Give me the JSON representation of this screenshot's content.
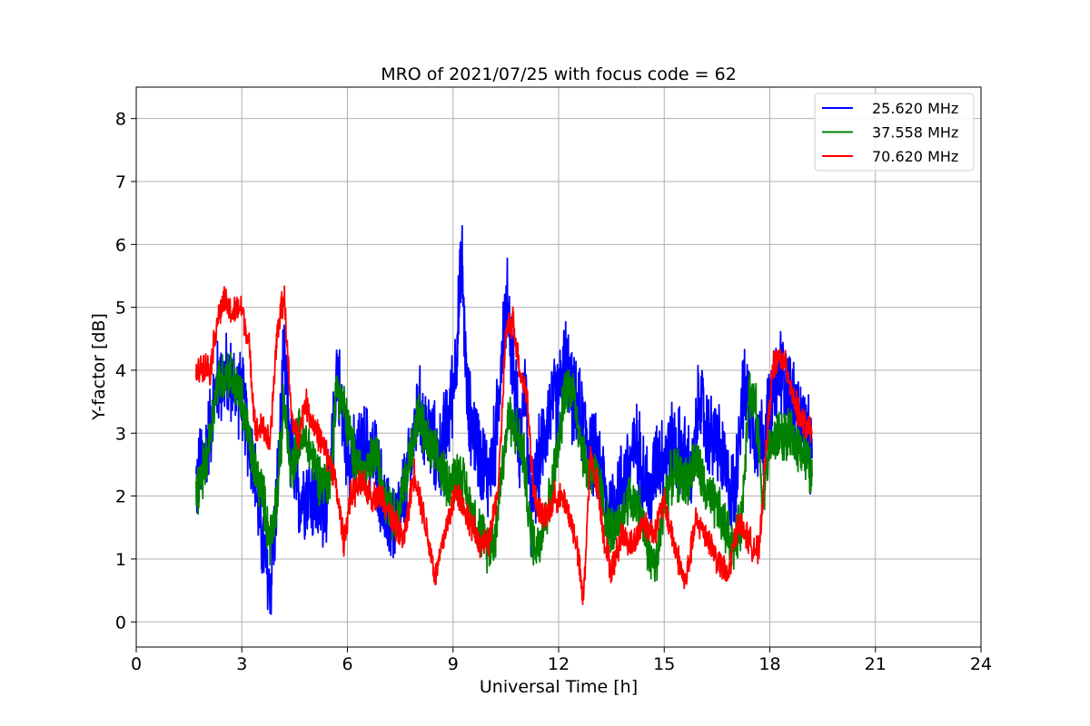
{
  "chart_data": {
    "type": "line",
    "title": "MRO of 2021/07/25 with focus code = 62",
    "xlabel": "Universal Time [h]",
    "ylabel": "Y-factor [dB]",
    "xlim": [
      0,
      24
    ],
    "ylim": [
      -0.4,
      8.5
    ],
    "xticks": [
      0,
      3,
      6,
      9,
      12,
      15,
      18,
      21,
      24
    ],
    "yticks": [
      0,
      1,
      2,
      3,
      4,
      5,
      6,
      7,
      8
    ],
    "grid": true,
    "legend_position": "top-right",
    "series": [
      {
        "name": "25.620 MHz",
        "color": "#0000ff",
        "noise": 0.6,
        "x": [
          1.7,
          2.0,
          2.3,
          2.6,
          3.0,
          3.3,
          3.6,
          3.8,
          4.0,
          4.2,
          4.4,
          4.6,
          4.9,
          5.2,
          5.5,
          5.7,
          5.9,
          6.2,
          6.5,
          6.8,
          7.1,
          7.4,
          7.7,
          8.0,
          8.3,
          8.6,
          8.9,
          9.1,
          9.25,
          9.4,
          9.6,
          9.8,
          10.0,
          10.2,
          10.4,
          10.55,
          10.7,
          10.9,
          11.05,
          11.2,
          11.4,
          11.7,
          12.0,
          12.2,
          12.4,
          12.6,
          12.8,
          13.0,
          13.2,
          13.4,
          13.6,
          13.8,
          14.0,
          14.2,
          14.4,
          14.6,
          14.8,
          15.0,
          15.2,
          15.5,
          15.8,
          16.0,
          16.2,
          16.5,
          16.8,
          17.0,
          17.2,
          17.4,
          17.6,
          17.8,
          18.0,
          18.3,
          18.6,
          18.9,
          19.2
        ],
        "values": [
          2.2,
          2.8,
          3.8,
          3.9,
          3.6,
          2.6,
          1.2,
          0.5,
          2.0,
          4.2,
          2.6,
          2.0,
          2.1,
          1.8,
          2.0,
          4.1,
          3.0,
          2.5,
          2.8,
          2.6,
          1.6,
          1.6,
          2.2,
          3.4,
          3.0,
          2.6,
          3.3,
          4.3,
          5.8,
          3.5,
          3.0,
          2.6,
          2.3,
          2.8,
          4.5,
          5.1,
          4.1,
          2.8,
          3.9,
          1.6,
          2.4,
          3.3,
          3.6,
          4.2,
          3.5,
          3.3,
          3.0,
          2.6,
          2.5,
          1.7,
          2.0,
          2.2,
          2.5,
          2.8,
          2.5,
          1.9,
          2.7,
          2.6,
          2.8,
          2.7,
          2.3,
          3.6,
          3.0,
          2.9,
          2.2,
          2.0,
          3.6,
          3.5,
          3.0,
          2.9,
          3.4,
          4.0,
          3.6,
          3.2,
          2.6
        ]
      },
      {
        "name": "37.558 MHz",
        "color": "#008000",
        "noise": 0.35,
        "x": [
          1.7,
          2.0,
          2.3,
          2.6,
          3.0,
          3.3,
          3.6,
          3.8,
          4.0,
          4.2,
          4.4,
          4.6,
          4.9,
          5.2,
          5.5,
          5.7,
          5.9,
          6.2,
          6.5,
          6.8,
          7.1,
          7.4,
          7.7,
          8.0,
          8.3,
          8.6,
          8.9,
          9.2,
          9.5,
          9.8,
          10.0,
          10.2,
          10.4,
          10.6,
          10.8,
          11.0,
          11.2,
          11.4,
          11.7,
          12.0,
          12.2,
          12.4,
          12.6,
          12.8,
          13.0,
          13.2,
          13.4,
          13.6,
          13.8,
          14.0,
          14.3,
          14.6,
          14.8,
          15.0,
          15.3,
          15.6,
          15.9,
          16.2,
          16.5,
          16.8,
          17.0,
          17.2,
          17.4,
          17.6,
          17.8,
          18.0,
          18.3,
          18.6,
          18.9,
          19.2
        ],
        "values": [
          2.0,
          2.6,
          3.8,
          4.0,
          3.5,
          2.6,
          2.0,
          1.3,
          2.0,
          3.5,
          2.3,
          3.0,
          2.8,
          2.3,
          2.2,
          3.8,
          3.4,
          2.6,
          2.3,
          2.7,
          2.0,
          1.6,
          2.4,
          3.3,
          2.8,
          2.5,
          2.2,
          2.4,
          1.8,
          1.4,
          1.2,
          1.4,
          2.5,
          3.3,
          3.0,
          2.7,
          1.4,
          1.2,
          1.8,
          2.8,
          3.8,
          3.7,
          3.0,
          2.4,
          2.4,
          2.1,
          1.5,
          1.4,
          1.6,
          2.0,
          1.8,
          1.0,
          0.9,
          2.0,
          2.4,
          2.2,
          2.6,
          2.0,
          1.8,
          1.4,
          1.2,
          1.6,
          3.7,
          3.4,
          2.0,
          2.8,
          3.0,
          2.9,
          2.8,
          2.3
        ]
      },
      {
        "name": "70.620 MHz",
        "color": "#ff0000",
        "noise": 0.2,
        "x": [
          1.7,
          1.9,
          2.1,
          2.3,
          2.5,
          2.7,
          3.0,
          3.2,
          3.4,
          3.6,
          3.8,
          4.0,
          4.2,
          4.4,
          4.6,
          4.8,
          5.0,
          5.3,
          5.6,
          5.9,
          6.1,
          6.4,
          6.7,
          7.0,
          7.3,
          7.6,
          7.9,
          8.2,
          8.5,
          8.8,
          9.1,
          9.4,
          9.7,
          10.0,
          10.3,
          10.5,
          10.7,
          10.9,
          11.1,
          11.3,
          11.6,
          11.9,
          12.2,
          12.5,
          12.7,
          12.9,
          13.1,
          13.3,
          13.5,
          13.8,
          14.1,
          14.4,
          14.7,
          15.0,
          15.3,
          15.6,
          15.9,
          16.2,
          16.5,
          16.8,
          17.1,
          17.4,
          17.7,
          17.9,
          18.1,
          18.3,
          18.5,
          18.7,
          18.9,
          19.2
        ],
        "values": [
          3.9,
          4.1,
          4.0,
          4.8,
          5.1,
          4.9,
          5.0,
          4.4,
          3.0,
          3.1,
          2.8,
          4.6,
          5.2,
          3.3,
          2.9,
          3.5,
          3.2,
          2.8,
          2.4,
          1.3,
          2.0,
          2.2,
          2.0,
          2.0,
          1.6,
          1.3,
          2.4,
          1.6,
          0.7,
          1.5,
          2.1,
          1.7,
          1.3,
          1.2,
          2.2,
          4.6,
          4.8,
          4.0,
          3.6,
          2.0,
          1.6,
          2.0,
          1.9,
          1.3,
          0.3,
          2.6,
          2.2,
          1.3,
          0.8,
          1.4,
          1.2,
          1.6,
          1.4,
          1.9,
          1.2,
          0.6,
          1.6,
          1.4,
          1.0,
          0.7,
          1.6,
          1.3,
          1.1,
          2.8,
          4.1,
          4.2,
          4.0,
          3.5,
          3.2,
          3.0
        ]
      }
    ]
  }
}
